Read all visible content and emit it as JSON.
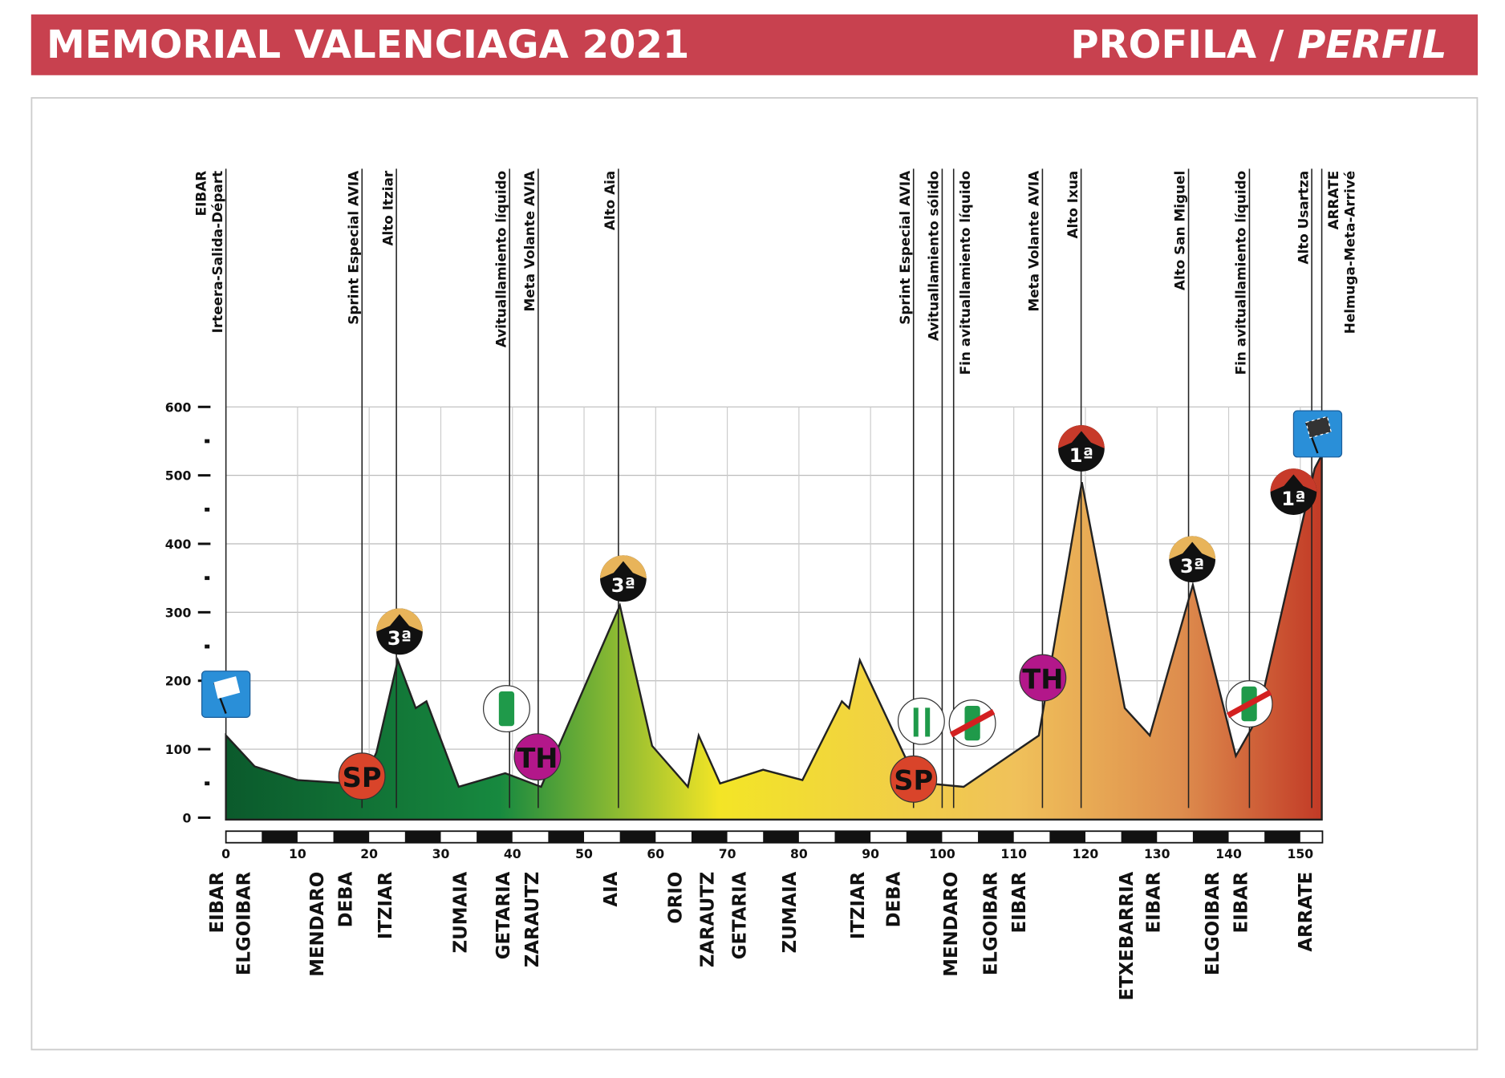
{
  "header": {
    "title": "MEMORIAL VALENCIAGA 2021",
    "subtitle_a": "PROFILA / ",
    "subtitle_b": "PERFIL",
    "color": "#c8414f"
  },
  "chart_data": {
    "type": "area",
    "title": "MEMORIAL VALENCIAGA 2021",
    "xlabel": "",
    "ylabel": "",
    "xlim": [
      0,
      153
    ],
    "ylim": [
      0,
      600
    ],
    "x_ticks": [
      0,
      10,
      20,
      30,
      40,
      50,
      60,
      70,
      80,
      90,
      100,
      110,
      120,
      130,
      140,
      150
    ],
    "y_ticks": [
      0,
      100,
      200,
      300,
      400,
      500,
      600
    ],
    "grid": true,
    "profile": [
      [
        0,
        120
      ],
      [
        4,
        75
      ],
      [
        10,
        55
      ],
      [
        17,
        50
      ],
      [
        19,
        50
      ],
      [
        21,
        95
      ],
      [
        24,
        230
      ],
      [
        26.5,
        160
      ],
      [
        28,
        170
      ],
      [
        32.5,
        45
      ],
      [
        39,
        65
      ],
      [
        44,
        45
      ],
      [
        55,
        310
      ],
      [
        59.5,
        105
      ],
      [
        64.5,
        45
      ],
      [
        66,
        120
      ],
      [
        69,
        50
      ],
      [
        75,
        70
      ],
      [
        80.5,
        55
      ],
      [
        86,
        170
      ],
      [
        87,
        160
      ],
      [
        88.5,
        230
      ],
      [
        95,
        85
      ],
      [
        98,
        50
      ],
      [
        103,
        45
      ],
      [
        113.5,
        120
      ],
      [
        119.5,
        490
      ],
      [
        125.5,
        160
      ],
      [
        129,
        120
      ],
      [
        135,
        340
      ],
      [
        141,
        90
      ],
      [
        144,
        145
      ],
      [
        152,
        510
      ],
      [
        153,
        530
      ]
    ],
    "colors": [
      "#0b5a2c",
      "#17893f",
      "#f3e526",
      "#f0c15a",
      "#de8e4e",
      "#c23a26"
    ],
    "top_labels": [
      {
        "km": 0,
        "lines": [
          "EIBAR",
          "Irteera-Salida-Départ"
        ]
      },
      {
        "km": 19,
        "lines": [
          "Sprint Especial AVIA"
        ]
      },
      {
        "km": 23.8,
        "lines": [
          "Alto Itziar"
        ]
      },
      {
        "km": 39.6,
        "lines": [
          "Avituallamiento líquido"
        ]
      },
      {
        "km": 43.6,
        "lines": [
          "Meta Volante AVIA"
        ]
      },
      {
        "km": 54.8,
        "lines": [
          "Alto Aia"
        ]
      },
      {
        "km": 96,
        "lines": [
          "Sprint Especial AVIA"
        ]
      },
      {
        "km": 100,
        "lines": [
          "Avituallamiento sólido"
        ]
      },
      {
        "km": 101.6,
        "lines": [
          "Fin avituallamiento líquido"
        ]
      },
      {
        "km": 114,
        "lines": [
          "Meta Volante AVIA"
        ]
      },
      {
        "km": 119.4,
        "lines": [
          "Alto Ixua"
        ]
      },
      {
        "km": 134.4,
        "lines": [
          "Alto San Miguel"
        ]
      },
      {
        "km": 142.9,
        "lines": [
          "Fin avituallamiento líquido"
        ]
      },
      {
        "km": 151.6,
        "lines": [
          "Alto Usartza"
        ]
      },
      {
        "km": 153,
        "lines": [
          "ARRATE",
          "Helmuga-Meta-Arrivé"
        ]
      }
    ],
    "towns": [
      {
        "km": 0,
        "name": "EIBAR"
      },
      {
        "km": 3,
        "name": "ELGOIBAR"
      },
      {
        "km": 14,
        "name": "MENDARO"
      },
      {
        "km": 18,
        "name": "DEBA"
      },
      {
        "km": 23.5,
        "name": "ITZIAR"
      },
      {
        "km": 34,
        "name": "ZUMAIA"
      },
      {
        "km": 40,
        "name": "GETARIA"
      },
      {
        "km": 44,
        "name": "ZARAUTZ"
      },
      {
        "km": 55,
        "name": "AIA"
      },
      {
        "km": 64,
        "name": "ORIO"
      },
      {
        "km": 68.5,
        "name": "ZARAUTZ"
      },
      {
        "km": 73,
        "name": "GETARIA"
      },
      {
        "km": 80,
        "name": "ZUMAIA"
      },
      {
        "km": 89.5,
        "name": "ITZIAR"
      },
      {
        "km": 94.5,
        "name": "DEBA"
      },
      {
        "km": 102.5,
        "name": "MENDARO"
      },
      {
        "km": 108,
        "name": "ELGOIBAR"
      },
      {
        "km": 112,
        "name": "EIBAR"
      },
      {
        "km": 127,
        "name": "ETXEBARRIA"
      },
      {
        "km": 130.5,
        "name": "EIBAR"
      },
      {
        "km": 139,
        "name": "ELGOIBAR"
      },
      {
        "km": 143,
        "name": "EIBAR"
      },
      {
        "km": 152,
        "name": "ARRATE"
      }
    ],
    "icons": [
      {
        "type": "start-flag",
        "km": 0
      },
      {
        "type": "sprint",
        "km": 19,
        "text": "SP"
      },
      {
        "type": "climb-3",
        "km": 24,
        "text": "3ª"
      },
      {
        "type": "feed-liquid",
        "km": 39.6
      },
      {
        "type": "intermediate",
        "km": 43.6,
        "text": "TH"
      },
      {
        "type": "climb-3",
        "km": 55,
        "text": "3ª"
      },
      {
        "type": "feed-solid",
        "km": 96
      },
      {
        "type": "sprint",
        "km": 96,
        "text": "SP"
      },
      {
        "type": "feed-end",
        "km": 103
      },
      {
        "type": "intermediate",
        "km": 114,
        "text": "TH"
      },
      {
        "type": "climb-1",
        "km": 119.5,
        "text": "1ª"
      },
      {
        "type": "climb-3",
        "km": 135,
        "text": "3ª"
      },
      {
        "type": "feed-end",
        "km": 143
      },
      {
        "type": "climb-1",
        "km": 149,
        "text": "1ª"
      },
      {
        "type": "finish-flag",
        "km": 153
      }
    ]
  }
}
